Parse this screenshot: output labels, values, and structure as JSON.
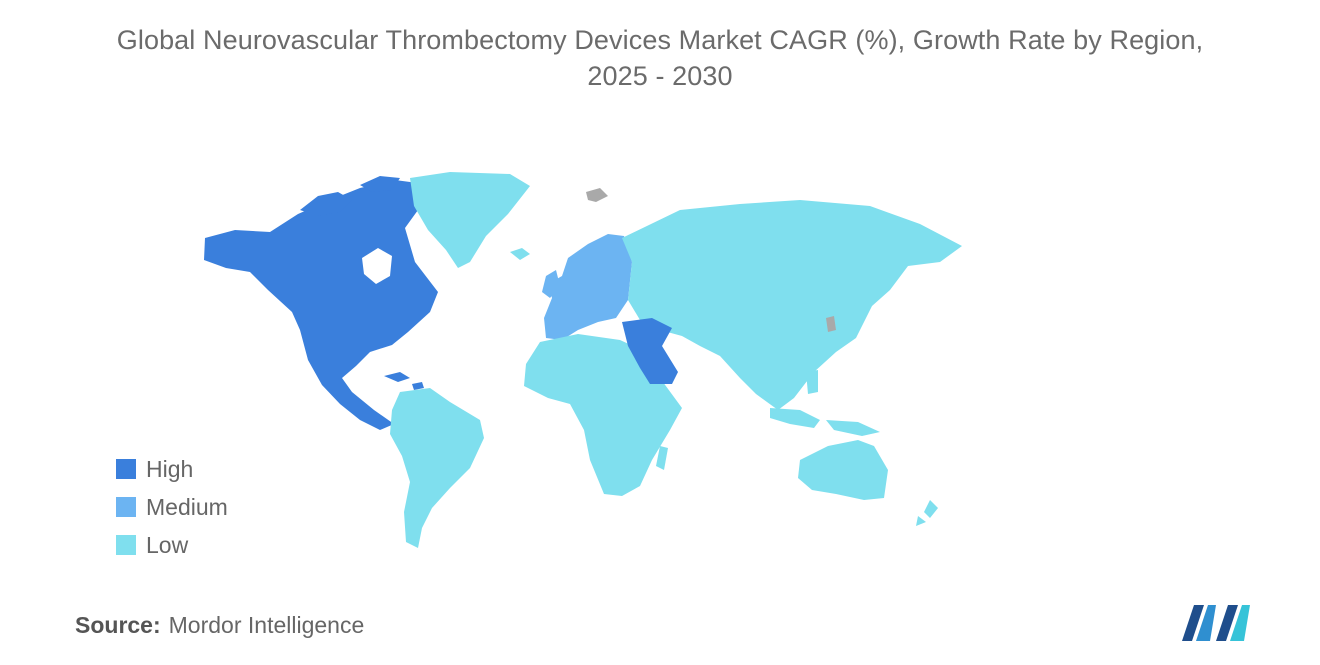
{
  "title_line1": "Global Neurovascular Thrombectomy Devices Market CAGR (%), Growth Rate by Region,",
  "title_line2": "2025 - 2030",
  "legend": [
    {
      "label": "High",
      "color": "#3a7fdc"
    },
    {
      "label": "Medium",
      "color": "#6cb4f2"
    },
    {
      "label": "Low",
      "color": "#7fdfee"
    }
  ],
  "regions": {
    "North America": "High",
    "Middle East (Gulf)": "High",
    "Europe": "Medium",
    "Greenland": "Low",
    "South America": "Low",
    "Africa": "Low",
    "Russia & Asia": "Low",
    "Oceania": "Low"
  },
  "no_data_color": "#a9a9a9",
  "source": {
    "label": "Source:",
    "name": "Mordor Intelligence"
  }
}
